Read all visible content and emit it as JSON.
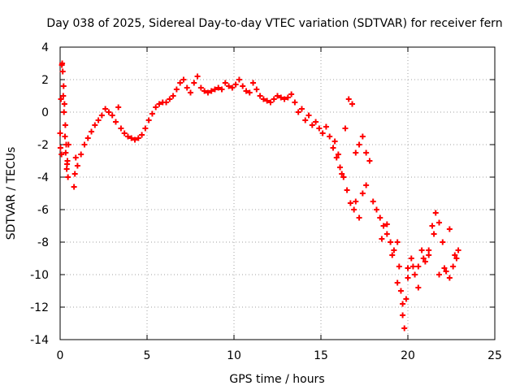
{
  "chart_data": {
    "type": "scatter",
    "title": "Day 038 of 2025, Sidereal Day-to-day VTEC variation (SDTVAR) for receiver fern",
    "xlabel": "GPS time / hours",
    "ylabel": "SDTVAR / TECUs",
    "xlim": [
      0,
      25
    ],
    "ylim": [
      -14,
      4
    ],
    "xticks": [
      0,
      5,
      10,
      15,
      20,
      25
    ],
    "yticks": [
      -14,
      -12,
      -10,
      -8,
      -6,
      -4,
      -2,
      0,
      2,
      4
    ],
    "xtick_labels": [
      "0",
      "5",
      "10",
      "15",
      "20",
      "25"
    ],
    "ytick_labels": [
      "-14",
      "-12",
      "-10",
      "-8",
      "-6",
      "-4",
      "-2",
      "0",
      "2",
      "4"
    ],
    "grid": true,
    "marker": "plus",
    "color": "#ff0000",
    "series": [
      {
        "name": "SDTVAR",
        "x": [
          0.0,
          0.05,
          0.1,
          0.15,
          0.2,
          0.25,
          0.3,
          0.35,
          0.4,
          0.45,
          0.02,
          0.08,
          0.12,
          0.18,
          0.22,
          0.28,
          0.32,
          0.38,
          0.42,
          0.48,
          0.8,
          0.85,
          0.9,
          1.0,
          1.2,
          1.4,
          1.6,
          1.8,
          2.0,
          2.2,
          2.4,
          2.6,
          2.8,
          3.0,
          3.2,
          3.35,
          3.5,
          3.7,
          3.9,
          4.1,
          4.3,
          4.5,
          4.7,
          4.9,
          5.1,
          5.3,
          5.5,
          5.7,
          5.9,
          6.1,
          6.3,
          6.5,
          6.7,
          6.9,
          7.1,
          7.3,
          7.5,
          7.7,
          7.9,
          8.1,
          8.3,
          8.5,
          8.7,
          8.9,
          9.1,
          9.3,
          9.5,
          9.7,
          9.9,
          10.1,
          10.3,
          10.5,
          10.7,
          10.9,
          11.1,
          11.3,
          11.5,
          11.7,
          11.9,
          12.1,
          12.3,
          12.5,
          12.7,
          12.9,
          13.1,
          13.3,
          13.5,
          13.7,
          13.9,
          14.1,
          14.3,
          14.5,
          14.7,
          14.9,
          15.1,
          15.3,
          15.5,
          15.7,
          15.9,
          16.1,
          16.3,
          16.5,
          16.7,
          16.9,
          15.8,
          16.0,
          16.2,
          16.4,
          16.6,
          16.8,
          17.0,
          17.2,
          17.4,
          17.6,
          17.8,
          18.0,
          18.2,
          18.4,
          18.6,
          18.8,
          19.0,
          19.2,
          19.4,
          19.5,
          19.6,
          19.7,
          19.8,
          19.9,
          20.0,
          20.2,
          20.4,
          20.6,
          20.8,
          21.0,
          21.2,
          21.4,
          21.6,
          21.8,
          22.0,
          22.2,
          22.4,
          22.6,
          22.8,
          22.9,
          17.0,
          17.2,
          17.4,
          17.6,
          18.5,
          18.8,
          19.1,
          19.4,
          19.7,
          20.0,
          20.3,
          20.6,
          20.9,
          21.2,
          21.5,
          21.8,
          22.1,
          22.4,
          22.7
        ],
        "y": [
          -1.3,
          0.8,
          2.9,
          2.5,
          1.6,
          0.5,
          -0.8,
          -2.0,
          -3.2,
          -4.0,
          -2.2,
          -2.6,
          3.0,
          1.0,
          0.0,
          -1.5,
          -2.5,
          -3.5,
          -3.0,
          -2.0,
          -4.6,
          -3.8,
          -2.8,
          -3.3,
          -2.6,
          -2.0,
          -1.6,
          -1.2,
          -0.8,
          -0.5,
          -0.2,
          0.2,
          0.0,
          -0.2,
          -0.6,
          0.3,
          -1.0,
          -1.3,
          -1.5,
          -1.6,
          -1.7,
          -1.6,
          -1.4,
          -1.0,
          -0.5,
          -0.1,
          0.3,
          0.5,
          0.6,
          0.6,
          0.8,
          1.0,
          1.4,
          1.8,
          2.0,
          1.5,
          1.2,
          1.8,
          2.2,
          1.5,
          1.3,
          1.2,
          1.3,
          1.4,
          1.5,
          1.4,
          1.8,
          1.6,
          1.5,
          1.7,
          2.0,
          1.6,
          1.3,
          1.2,
          1.8,
          1.4,
          1.0,
          0.8,
          0.7,
          0.6,
          0.8,
          1.0,
          0.9,
          0.8,
          0.9,
          1.1,
          0.6,
          0.0,
          0.2,
          -0.5,
          -0.2,
          -0.8,
          -0.6,
          -1.0,
          -1.3,
          -0.9,
          -1.5,
          -2.2,
          -2.8,
          -3.4,
          -4.0,
          -4.8,
          -5.6,
          -6.0,
          -1.8,
          -2.6,
          -3.8,
          -1.0,
          0.8,
          0.5,
          -2.5,
          -2.0,
          -1.5,
          -2.5,
          -3.0,
          -5.5,
          -6.0,
          -6.5,
          -7.0,
          -7.5,
          -8.0,
          -8.5,
          -8.0,
          -9.5,
          -11.0,
          -12.5,
          -13.3,
          -11.5,
          -9.6,
          -9.0,
          -10.0,
          -9.5,
          -8.5,
          -9.2,
          -8.5,
          -7.0,
          -6.2,
          -6.8,
          -8.0,
          -9.8,
          -10.2,
          -9.5,
          -9.0,
          -8.5,
          -5.5,
          -6.5,
          -5.0,
          -4.5,
          -7.8,
          -6.9,
          -8.8,
          -10.5,
          -11.8,
          -10.2,
          -9.5,
          -10.8,
          -9.0,
          -8.8,
          -7.5,
          -10.0,
          -9.6,
          -7.2,
          -8.8
        ]
      }
    ]
  }
}
